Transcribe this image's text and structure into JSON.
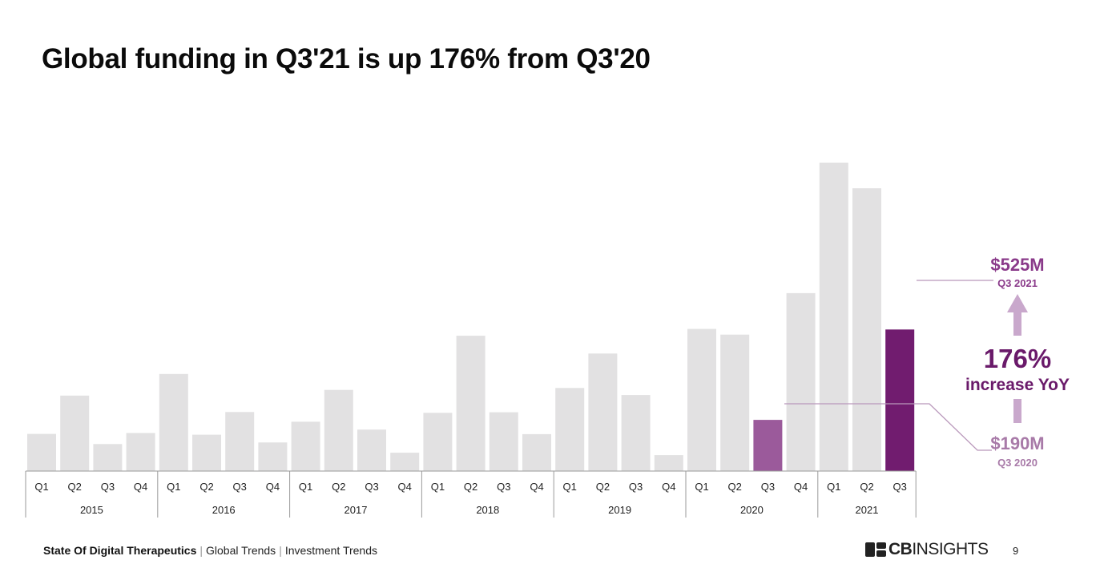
{
  "title": "Global funding in Q3'21 is up 176% from Q3'20",
  "footer": {
    "report": "State Of Digital Therapeutics",
    "crumb1": "Global Trends",
    "crumb2": "Investment Trends",
    "page": "9"
  },
  "logo": {
    "brand_bold": "CB",
    "brand_rest": "INSIGHTS"
  },
  "colors": {
    "bar": "#e2e1e2",
    "highlight_2020": "#9b5a9b",
    "highlight_2021": "#711c6f",
    "accent": "#b998bb"
  },
  "chart_data": {
    "type": "bar",
    "title": "Global funding in Q3'21 is up 176% from Q3'20",
    "xlabel": "",
    "ylabel": "",
    "quarters": [
      "Q1",
      "Q2",
      "Q3",
      "Q4"
    ],
    "years": [
      "2015",
      "2016",
      "2017",
      "2018",
      "2019",
      "2020",
      "2021"
    ],
    "categories": [
      "Q1 2015",
      "Q2 2015",
      "Q3 2015",
      "Q4 2015",
      "Q1 2016",
      "Q2 2016",
      "Q3 2016",
      "Q4 2016",
      "Q1 2017",
      "Q2 2017",
      "Q3 2017",
      "Q4 2017",
      "Q1 2018",
      "Q2 2018",
      "Q3 2018",
      "Q4 2018",
      "Q1 2019",
      "Q2 2019",
      "Q3 2019",
      "Q4 2019",
      "Q1 2020",
      "Q2 2020",
      "Q3 2020",
      "Q4 2020",
      "Q1 2021",
      "Q2 2021",
      "Q3 2021"
    ],
    "values": [
      138,
      280,
      100,
      141,
      360,
      135,
      219,
      106,
      183,
      301,
      154,
      68,
      216,
      502,
      218,
      137,
      308,
      436,
      282,
      59,
      527,
      506,
      190,
      660,
      1144,
      1049,
      525
    ],
    "units": "$M",
    "highlighted": [
      {
        "index": 22,
        "value_label": "$190M",
        "period_label": "Q3 2020"
      },
      {
        "index": 26,
        "value_label": "$525M",
        "period_label": "Q3 2021"
      }
    ],
    "annotation": {
      "percent": "176%",
      "text": "increase YoY"
    },
    "grid": false,
    "legend": "none"
  }
}
